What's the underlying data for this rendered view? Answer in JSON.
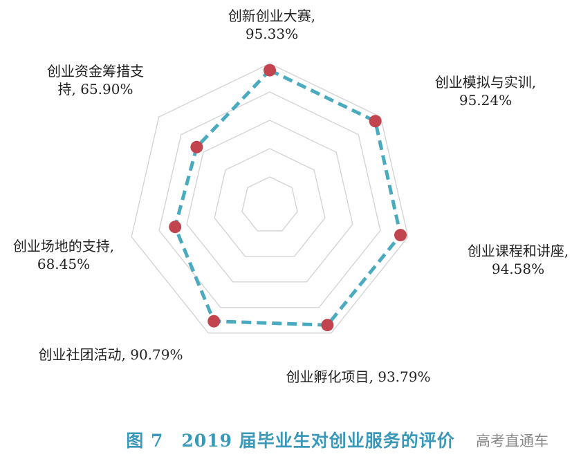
{
  "chart_data": {
    "type": "radar",
    "title": "2019 届毕业生对创业服务的评价",
    "figure_label": "图 7",
    "categories": [
      "创新创业大赛",
      "创业模拟与实训",
      "创业课程和讲座",
      "创业孵化项目",
      "创业社团活动",
      "创业场地的支持",
      "创业资金筹措支持"
    ],
    "value_labels": [
      "95.33%",
      "95.24%",
      "94.58%",
      "93.79%",
      "90.79%",
      "68.45%",
      "65.90%"
    ],
    "labels": [
      {
        "lines": [
          "创新创业大赛,",
          "95.33%"
        ]
      },
      {
        "lines": [
          "创业模拟与实训,",
          "95.24%"
        ]
      },
      {
        "lines": [
          "创业课程和讲座,",
          "94.58%"
        ]
      },
      {
        "lines": [
          "创业孵化项目, 93.79%"
        ]
      },
      {
        "lines": [
          "创业社团活动, 90.79%"
        ]
      },
      {
        "lines": [
          "创业场地的支持,",
          "68.45%"
        ]
      },
      {
        "lines": [
          "创业资金筹措支",
          "持, 65.90%"
        ]
      }
    ],
    "values": [
      95.33,
      95.24,
      94.58,
      93.79,
      90.79,
      68.45,
      65.9
    ],
    "rlim": [
      0,
      100
    ],
    "grid_levels": 5,
    "line_color": "#4aaabf",
    "marker_color": "#c1444e",
    "grid_color": "#d4d4d4",
    "title_color": "#3a98b8"
  },
  "watermark": "高考直通车"
}
